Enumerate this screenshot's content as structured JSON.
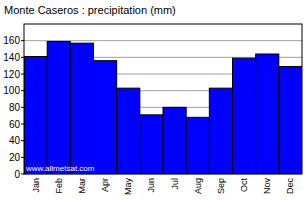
{
  "chart_data": {
    "type": "bar",
    "title": "Monte Caseros : precipitation (mm)",
    "categories": [
      "Jan",
      "Feb",
      "Mar",
      "Apr",
      "May",
      "Jun",
      "Jul",
      "Aug",
      "Sep",
      "Oct",
      "Nov",
      "Dec"
    ],
    "values": [
      141,
      159,
      157,
      136,
      103,
      71,
      80,
      68,
      103,
      139,
      144,
      129
    ],
    "color": "#0000ff",
    "ylim": [
      0,
      180
    ],
    "yticks": [
      0,
      20,
      40,
      60,
      80,
      100,
      120,
      140,
      160
    ],
    "grid": true,
    "annotations": [
      "www.allmetsat.com"
    ]
  }
}
